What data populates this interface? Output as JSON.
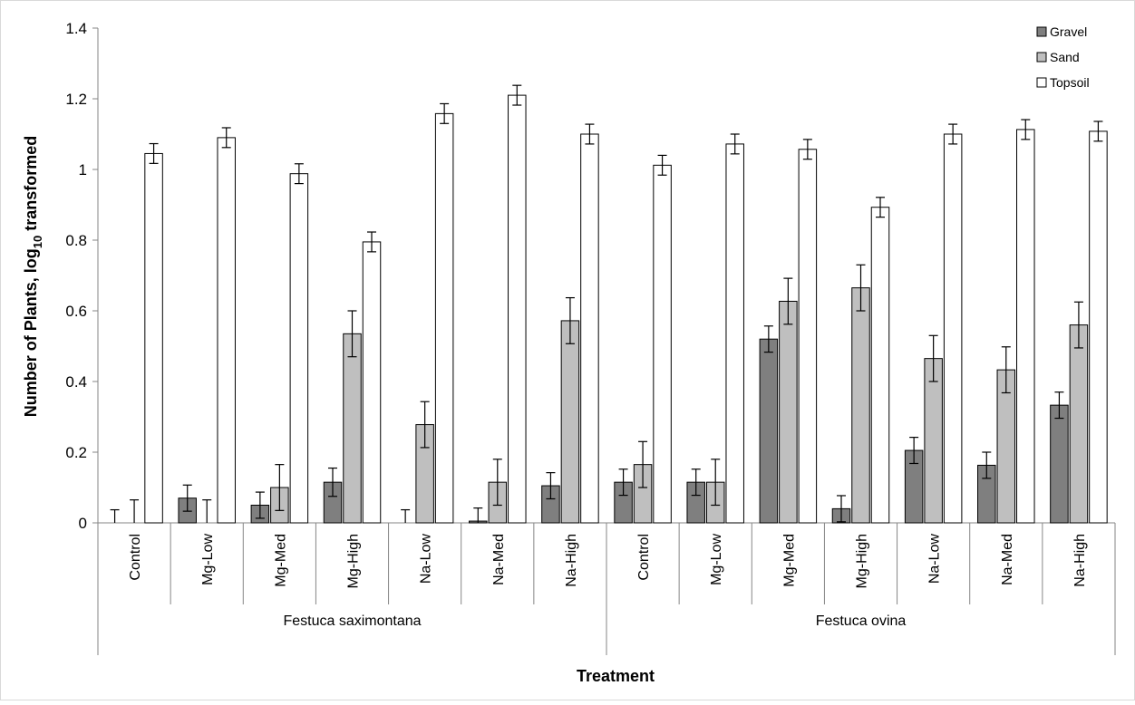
{
  "chart_data": {
    "type": "bar",
    "xlabel": "Treatment",
    "ylabel_main": "Number of Plants, log",
    "ylabel_sub": "10",
    "ylabel_tail": " transformed",
    "ylim": [
      0,
      1.4
    ],
    "yticks": [
      0,
      0.2,
      0.4,
      0.6,
      0.8,
      1,
      1.2,
      1.4
    ],
    "ytick_labels": [
      "0",
      "0.2",
      "0.4",
      "0.6",
      "0.8",
      "1",
      "1.2",
      "1.4"
    ],
    "categories": [
      "Control",
      "Mg-Low",
      "Mg-Med",
      "Mg-High",
      "Na-Low",
      "Na-Med",
      "Na-High",
      "Control",
      "Mg-Low",
      "Mg-Med",
      "Mg-High",
      "Na-Low",
      "Na-Med",
      "Na-High"
    ],
    "groups": [
      {
        "name": "Festuca saximontana",
        "count": 7
      },
      {
        "name": "Festuca ovina",
        "count": 7
      }
    ],
    "legend_position": "top-right",
    "series": [
      {
        "name": "Gravel",
        "color": "#7f7f7f",
        "values": [
          0,
          0.07,
          0.05,
          0.115,
          0,
          0.005,
          0.105,
          0.115,
          0.115,
          0.52,
          0.04,
          0.205,
          0.163,
          0.333
        ],
        "errors": [
          0.037,
          0.037,
          0.037,
          0.04,
          0.037,
          0.037,
          0.037,
          0.037,
          0.037,
          0.037,
          0.037,
          0.037,
          0.037,
          0.037
        ]
      },
      {
        "name": "Sand",
        "color": "#bfbfbf",
        "values": [
          0,
          0,
          0.1,
          0.535,
          0.278,
          0.115,
          0.572,
          0.165,
          0.115,
          0.627,
          0.665,
          0.465,
          0.433,
          0.56
        ],
        "errors": [
          0.065,
          0.065,
          0.065,
          0.065,
          0.065,
          0.065,
          0.065,
          0.065,
          0.065,
          0.065,
          0.065,
          0.065,
          0.065,
          0.065
        ]
      },
      {
        "name": "Topsoil",
        "color": "#ffffff",
        "values": [
          1.045,
          1.09,
          0.988,
          0.795,
          1.158,
          1.21,
          1.1,
          1.012,
          1.072,
          1.057,
          0.893,
          1.1,
          1.113,
          1.108
        ],
        "errors": [
          0.028,
          0.028,
          0.028,
          0.028,
          0.028,
          0.028,
          0.028,
          0.028,
          0.028,
          0.028,
          0.028,
          0.028,
          0.028,
          0.028
        ]
      }
    ]
  }
}
